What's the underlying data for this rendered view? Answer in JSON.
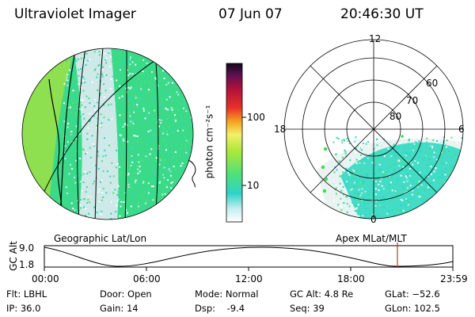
{
  "header": {
    "instrument": "Ultraviolet Imager",
    "date": "07 Jun 07",
    "time": "20:46:30 UT"
  },
  "colorbar": {
    "label": "photon cm⁻²s⁻¹",
    "ticks": [
      "100",
      "10"
    ]
  },
  "left_panel": {
    "caption": "Geographic Lat/Lon"
  },
  "right_panel": {
    "caption": "Apex MLat/MLT",
    "mlt_labels": {
      "top": "12",
      "left": "18",
      "right": "6",
      "bottom": "0"
    },
    "lat_labels": [
      "60",
      "70",
      "80"
    ]
  },
  "timeline": {
    "ylabel": "GC Alt",
    "y_ticks": [
      "9.0",
      "1.8"
    ],
    "x_ticks": [
      "00:00",
      "06:00",
      "12:00",
      "18:00",
      "23:59"
    ]
  },
  "status": {
    "flt": "Flt: LBHL",
    "ip": "IP: 36.0",
    "door": "Door: Open",
    "gain": "Gain: 14",
    "mode": "Mode: Normal",
    "dsp": "Dsp:    -9.4",
    "gcalt": "GC Alt: 4.8 Re",
    "seq": "Seq: 39",
    "glat": "GLat: −52.6",
    "glon": "GLon: 102.5"
  },
  "colors": {
    "marker": "#c0392b"
  }
}
